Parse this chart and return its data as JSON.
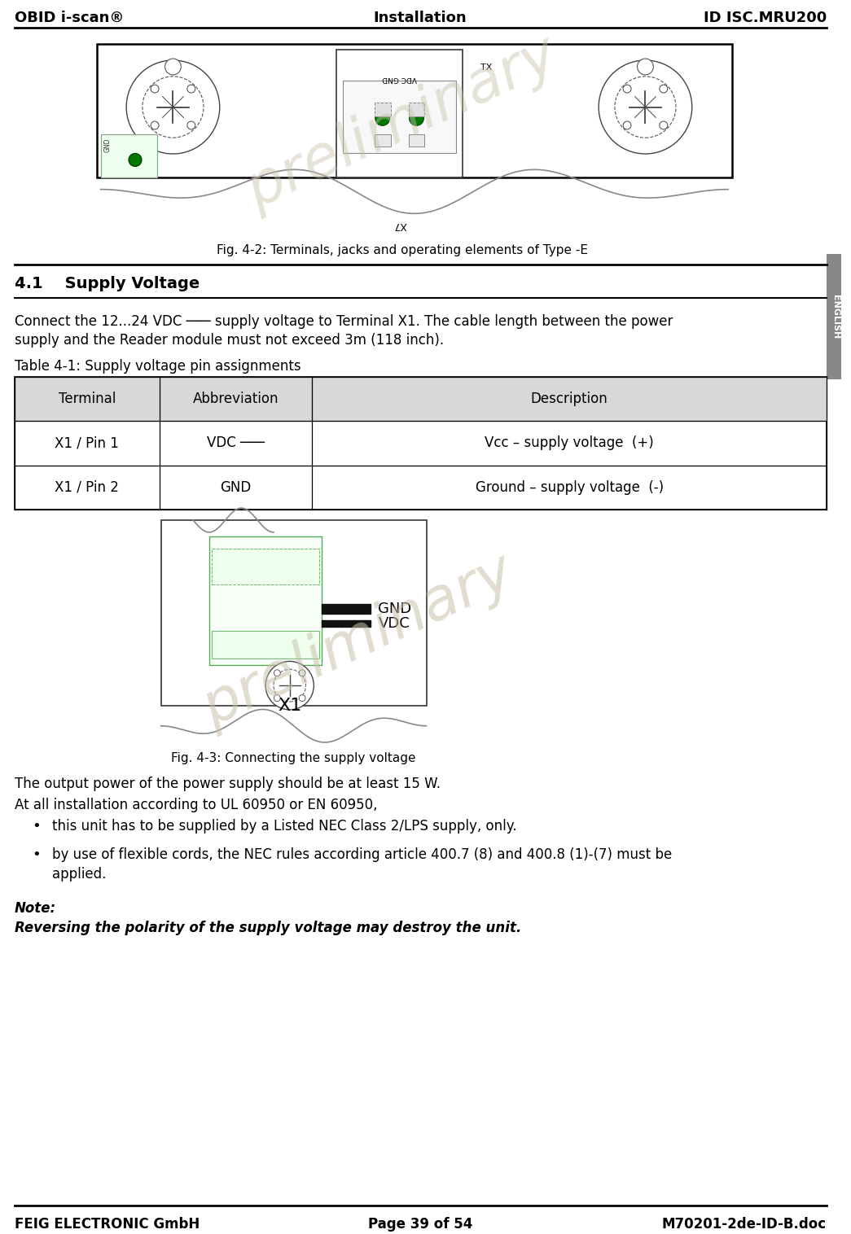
{
  "header_left": "OBID i-scan®",
  "header_center": "Installation",
  "header_right": "ID ISC.MRU200",
  "footer_left": "FEIG ELECTRONIC GmbH",
  "footer_center": "Page 39 of 54",
  "footer_right": "M70201-2de-ID-B.doc",
  "fig1_caption": "Fig. 4-2: Terminals, jacks and operating elements of Type -E",
  "section_title": "4.1    Supply Voltage",
  "para1_line1": "Connect the 12...24 VDC ─── supply voltage to Terminal X1. The cable length between the power",
  "para1_line2": "supply and the Reader module must not exceed 3m (118 inch).",
  "table_title": "Table 4-1: Supply voltage pin assignments",
  "table_headers": [
    "Terminal",
    "Abbreviation",
    "Description"
  ],
  "table_rows": [
    [
      "X1 / Pin 1",
      "VDC ───",
      "Vcc – supply voltage  (+)"
    ],
    [
      "X1 / Pin 2",
      "GND",
      "Ground – supply voltage  (-)"
    ]
  ],
  "fig2_caption": "Fig. 4-3: Connecting the supply voltage",
  "para2": "The output power of the power supply should be at least 15 W.",
  "para3": "At all installation according to UL 60950 or EN 60950,",
  "bullet1": "this unit has to be supplied by a Listed NEC Class 2/LPS supply, only.",
  "bullet2_line1": "by use of flexible cords, the NEC rules according article 400.7 (8) and 400.8 (1)-(7) must be",
  "bullet2_line2": "applied.",
  "note_label": "Note:",
  "note_text": "Reversing the polarity of the supply voltage may destroy the unit.",
  "english_tab": "ENGLISH",
  "bg_color": "#ffffff",
  "header_bg": "#ffffff",
  "table_header_bg": "#d8d8d8",
  "table_row_bg": "#ffffff",
  "preliminary_color": "#c8c0a8",
  "connector_color": "#006600",
  "connector_fill": "#007700",
  "diagram_color": "#333333",
  "tab_color": "#888888",
  "fig2_border": "#aaccaa",
  "wire_color": "#111111"
}
